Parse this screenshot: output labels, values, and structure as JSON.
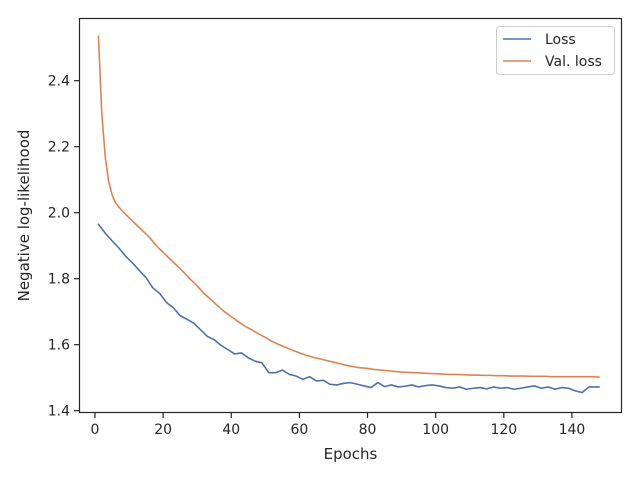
{
  "chart_data": {
    "type": "line",
    "xlabel": "Epochs",
    "ylabel": "Negative log-likelihood",
    "xlim": [
      -4.4,
      154.4
    ],
    "ylim": [
      1.396,
      2.59
    ],
    "xticks": [
      0,
      20,
      40,
      60,
      80,
      100,
      120,
      140
    ],
    "yticks": [
      1.4,
      1.6,
      1.8,
      2.0,
      2.2,
      2.4
    ],
    "xtick_labels": [
      "0",
      "20",
      "40",
      "60",
      "80",
      "100",
      "120",
      "140"
    ],
    "ytick_labels": [
      "1.4",
      "1.6",
      "1.8",
      "2.0",
      "2.2",
      "2.4"
    ],
    "grid": false,
    "legend_position": "top-right",
    "series": [
      {
        "name": "Loss",
        "color": "#4c72b0",
        "x": [
          1,
          3,
          5,
          7,
          9,
          11,
          13,
          15,
          17,
          19,
          21,
          23,
          25,
          27,
          29,
          31,
          33,
          35,
          37,
          39,
          41,
          43,
          45,
          47,
          49,
          51,
          53,
          55,
          57,
          59,
          61,
          63,
          65,
          67,
          69,
          71,
          73,
          75,
          77,
          79,
          81,
          83,
          85,
          87,
          89,
          91,
          93,
          95,
          97,
          99,
          101,
          103,
          105,
          107,
          109,
          111,
          113,
          115,
          117,
          119,
          121,
          123,
          125,
          127,
          129,
          131,
          133,
          135,
          137,
          139,
          141,
          143,
          145,
          148
        ],
        "values": [
          1.965,
          1.938,
          1.915,
          1.893,
          1.868,
          1.848,
          1.825,
          1.803,
          1.772,
          1.755,
          1.728,
          1.712,
          1.688,
          1.677,
          1.665,
          1.645,
          1.625,
          1.615,
          1.598,
          1.585,
          1.572,
          1.575,
          1.56,
          1.55,
          1.545,
          1.515,
          1.515,
          1.523,
          1.51,
          1.505,
          1.495,
          1.503,
          1.49,
          1.492,
          1.48,
          1.478,
          1.483,
          1.485,
          1.48,
          1.475,
          1.47,
          1.485,
          1.473,
          1.478,
          1.472,
          1.474,
          1.478,
          1.472,
          1.476,
          1.478,
          1.475,
          1.47,
          1.468,
          1.472,
          1.465,
          1.468,
          1.47,
          1.466,
          1.472,
          1.468,
          1.47,
          1.465,
          1.468,
          1.472,
          1.475,
          1.468,
          1.472,
          1.465,
          1.47,
          1.468,
          1.46,
          1.455,
          1.472,
          1.472
        ]
      },
      {
        "name": "Val. loss",
        "color": "#dd8452",
        "x": [
          1,
          2,
          3,
          4,
          5,
          6,
          8,
          10,
          12,
          14,
          16,
          18,
          20,
          22,
          24,
          26,
          28,
          30,
          32,
          34,
          36,
          38,
          40,
          42,
          44,
          46,
          48,
          50,
          52,
          54,
          56,
          58,
          60,
          62,
          64,
          66,
          68,
          70,
          72,
          74,
          76,
          78,
          80,
          82,
          84,
          86,
          88,
          90,
          92,
          94,
          96,
          98,
          100,
          102,
          104,
          106,
          108,
          110,
          112,
          114,
          116,
          118,
          120,
          122,
          124,
          126,
          128,
          130,
          132,
          134,
          136,
          138,
          140,
          142,
          144,
          146,
          148
        ],
        "values": [
          2.535,
          2.3,
          2.17,
          2.095,
          2.055,
          2.03,
          2.005,
          1.985,
          1.965,
          1.945,
          1.925,
          1.9,
          1.88,
          1.86,
          1.84,
          1.82,
          1.798,
          1.778,
          1.755,
          1.737,
          1.718,
          1.7,
          1.685,
          1.67,
          1.656,
          1.645,
          1.633,
          1.622,
          1.61,
          1.6,
          1.592,
          1.583,
          1.575,
          1.568,
          1.562,
          1.557,
          1.552,
          1.547,
          1.542,
          1.537,
          1.533,
          1.53,
          1.528,
          1.525,
          1.523,
          1.521,
          1.519,
          1.517,
          1.516,
          1.515,
          1.514,
          1.513,
          1.512,
          1.511,
          1.51,
          1.51,
          1.509,
          1.508,
          1.508,
          1.507,
          1.507,
          1.506,
          1.506,
          1.505,
          1.505,
          1.505,
          1.504,
          1.504,
          1.504,
          1.503,
          1.503,
          1.503,
          1.503,
          1.503,
          1.503,
          1.503,
          1.502
        ]
      }
    ]
  }
}
